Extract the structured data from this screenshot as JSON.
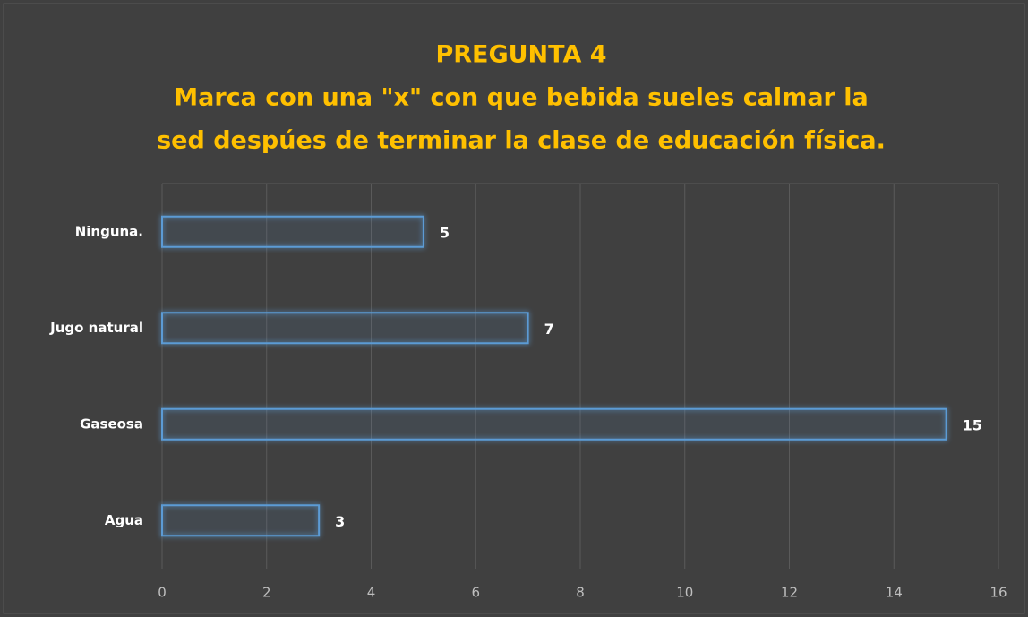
{
  "chart_data": {
    "type": "hbar",
    "title": [
      "PREGUNTA 4",
      "Marca con una \"x\"  con que bebida sueles calmar la",
      "sed despúes de terminar la clase de educación física."
    ],
    "categories": [
      "Agua",
      "Gaseosa",
      "Jugo natural",
      "Ninguna."
    ],
    "values": [
      3,
      15,
      7,
      5
    ],
    "color": "#5b9bd5",
    "xlim": [
      0,
      16
    ],
    "xticks": [
      0,
      2,
      4,
      6,
      8,
      10,
      12,
      14,
      16
    ],
    "grid": true
  }
}
